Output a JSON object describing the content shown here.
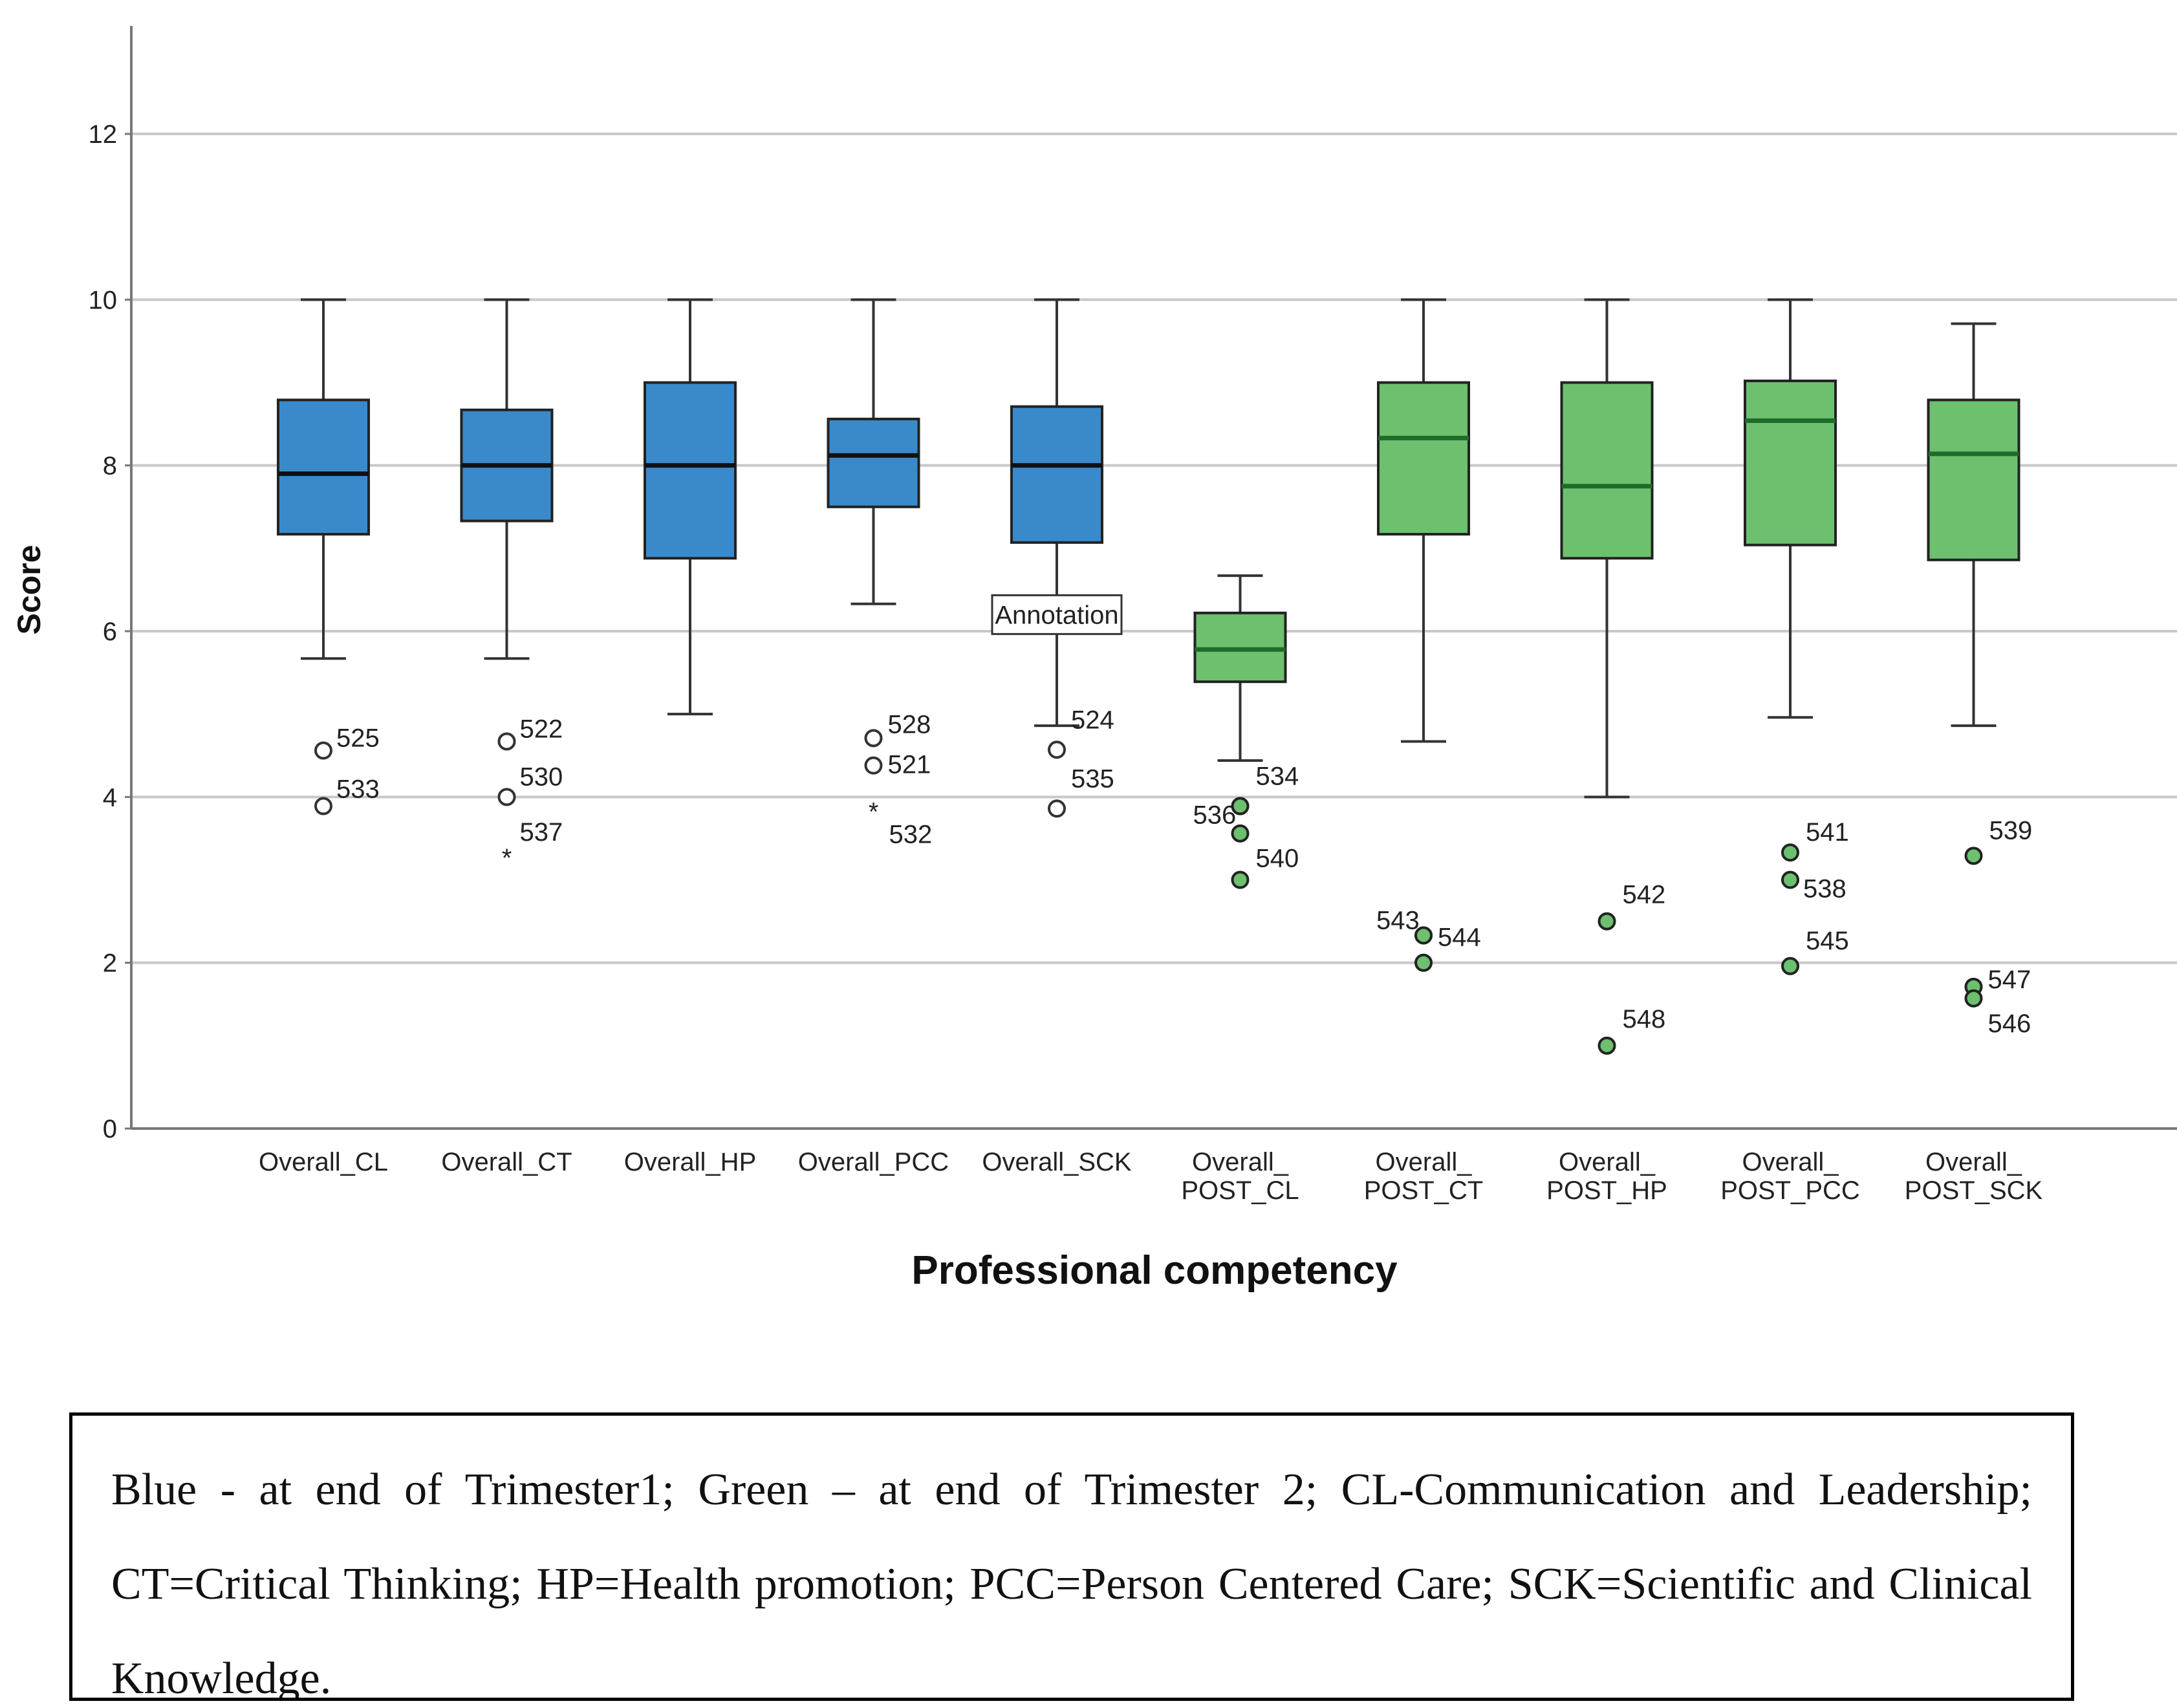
{
  "chart_data": {
    "type": "boxplot",
    "ylabel": "Score",
    "xlabel": "Professional competency",
    "ylim": [
      0,
      13
    ],
    "yticks": [
      0,
      2,
      4,
      6,
      8,
      10,
      12
    ],
    "grid": true,
    "colors": {
      "blue": "#3a8acb",
      "green": "#6cc06e",
      "green_median": "#1f6b2b",
      "blue_median": "#111111"
    },
    "categories": [
      {
        "label": [
          "Overall_CL"
        ],
        "color": "blue",
        "whisker_low": 5.67,
        "q1": 7.17,
        "median": 7.9,
        "q3": 8.79,
        "whisker_high": 10,
        "outliers": [
          {
            "y": 4.56,
            "label": "525",
            "shape": "circle",
            "lx": 8,
            "ly": -18
          },
          {
            "y": 3.89,
            "label": "533",
            "shape": "circle",
            "lx": 8,
            "ly": -25
          }
        ]
      },
      {
        "label": [
          "Overall_CT"
        ],
        "color": "blue",
        "whisker_low": 5.67,
        "q1": 7.33,
        "median": 8.0,
        "q3": 8.67,
        "whisker_high": 10,
        "outliers": [
          {
            "y": 4.67,
            "label": "522",
            "shape": "circle",
            "lx": 8,
            "ly": -18
          },
          {
            "y": 4.0,
            "label": "530",
            "shape": "circle",
            "lx": 8,
            "ly": -30
          },
          {
            "y": 3.33,
            "label": "537",
            "shape": "star",
            "lx": 8,
            "ly": -30
          }
        ]
      },
      {
        "label": [
          "Overall_HP"
        ],
        "color": "blue",
        "whisker_low": 5.0,
        "q1": 6.88,
        "median": 8.0,
        "q3": 9.0,
        "whisker_high": 10,
        "outliers": []
      },
      {
        "label": [
          "Overall_PCC"
        ],
        "color": "blue",
        "whisker_low": 6.33,
        "q1": 7.5,
        "median": 8.12,
        "q3": 8.56,
        "whisker_high": 10,
        "outliers": [
          {
            "y": 4.71,
            "label": "528",
            "shape": "circle",
            "lx": 10,
            "ly": -20
          },
          {
            "y": 4.38,
            "label": "521",
            "shape": "circle",
            "lx": 10,
            "ly": 0
          },
          {
            "y": 3.89,
            "label": "532",
            "shape": "star",
            "lx": 12,
            "ly": 45
          }
        ]
      },
      {
        "label": [
          "Overall_SCK"
        ],
        "color": "blue",
        "whisker_low": 4.86,
        "q1": 7.07,
        "median": 8.0,
        "q3": 8.71,
        "whisker_high": 10,
        "outliers": [
          {
            "y": 4.57,
            "label": "524",
            "shape": "circle",
            "lx": 10,
            "ly": -45
          },
          {
            "y": 3.86,
            "label": "535",
            "shape": "circle",
            "lx": 10,
            "ly": -45
          }
        ]
      },
      {
        "label": [
          "Overall_",
          "POST_CL"
        ],
        "color": "green",
        "whisker_low": 4.44,
        "q1": 5.39,
        "median": 5.78,
        "q3": 6.22,
        "whisker_high": 6.67,
        "outliers": [
          {
            "y": 3.89,
            "label": "534",
            "shape": "dot",
            "lx": 12,
            "ly": -45
          },
          {
            "y": 3.89,
            "label": "536",
            "shape": "dot",
            "lx": -85,
            "ly": 15
          },
          {
            "y": 3.56,
            "label": "540",
            "shape": "dot",
            "lx": 12,
            "ly": 40
          },
          {
            "y": 3.0,
            "label": "",
            "shape": "dot",
            "lx": 0,
            "ly": 0
          }
        ]
      },
      {
        "label": [
          "Overall_",
          "POST_CT"
        ],
        "color": "green",
        "whisker_low": 4.67,
        "q1": 7.17,
        "median": 8.33,
        "q3": 9.0,
        "whisker_high": 10,
        "outliers": [
          {
            "y": 2.33,
            "label": "543",
            "shape": "dot",
            "lx": -85,
            "ly": -22
          },
          {
            "y": 2.33,
            "label": "544",
            "shape": "dot",
            "lx": 10,
            "ly": 4
          },
          {
            "y": 2.0,
            "label": "",
            "shape": "dot",
            "lx": 0,
            "ly": 0
          }
        ]
      },
      {
        "label": [
          "Overall_",
          "POST_HP"
        ],
        "color": "green",
        "whisker_low": 4.0,
        "q1": 6.88,
        "median": 7.75,
        "q3": 9.0,
        "whisker_high": 10,
        "outliers": [
          {
            "y": 2.5,
            "label": "542",
            "shape": "dot",
            "lx": 12,
            "ly": -40
          },
          {
            "y": 1.0,
            "label": "548",
            "shape": "dot",
            "lx": 12,
            "ly": -40
          }
        ]
      },
      {
        "label": [
          "Overall_",
          "POST_PCC"
        ],
        "color": "green",
        "whisker_low": 4.96,
        "q1": 7.04,
        "median": 8.54,
        "q3": 9.02,
        "whisker_high": 10,
        "outliers": [
          {
            "y": 3.33,
            "label": "541",
            "shape": "dot",
            "lx": 12,
            "ly": -30
          },
          {
            "y": 3.0,
            "label": "538",
            "shape": "dot",
            "lx": 8,
            "ly": 15
          },
          {
            "y": 1.96,
            "label": "545",
            "shape": "dot",
            "lx": 12,
            "ly": -38
          }
        ]
      },
      {
        "label": [
          "Overall_",
          "POST_SCK"
        ],
        "color": "green",
        "whisker_low": 4.86,
        "q1": 6.86,
        "median": 8.14,
        "q3": 8.79,
        "whisker_high": 9.71,
        "outliers": [
          {
            "y": 3.29,
            "label": "539",
            "shape": "dot",
            "lx": 12,
            "ly": -38
          },
          {
            "y": 1.71,
            "label": "547",
            "shape": "dot",
            "lx": 10,
            "ly": -10
          },
          {
            "y": 1.57,
            "label": "546",
            "shape": "dot",
            "lx": 10,
            "ly": 40
          }
        ]
      }
    ],
    "annotation": {
      "text": "Annotation",
      "y": 6.2,
      "category_index": 4
    }
  },
  "note": {
    "text": "Blue - at end of Trimester1; Green – at end of Trimester 2; CL-Communication and Leadership; CT=Critical Thinking; HP=Health promotion; PCC=Person Centered Care; SCK=Scientific and Clinical Knowledge."
  }
}
